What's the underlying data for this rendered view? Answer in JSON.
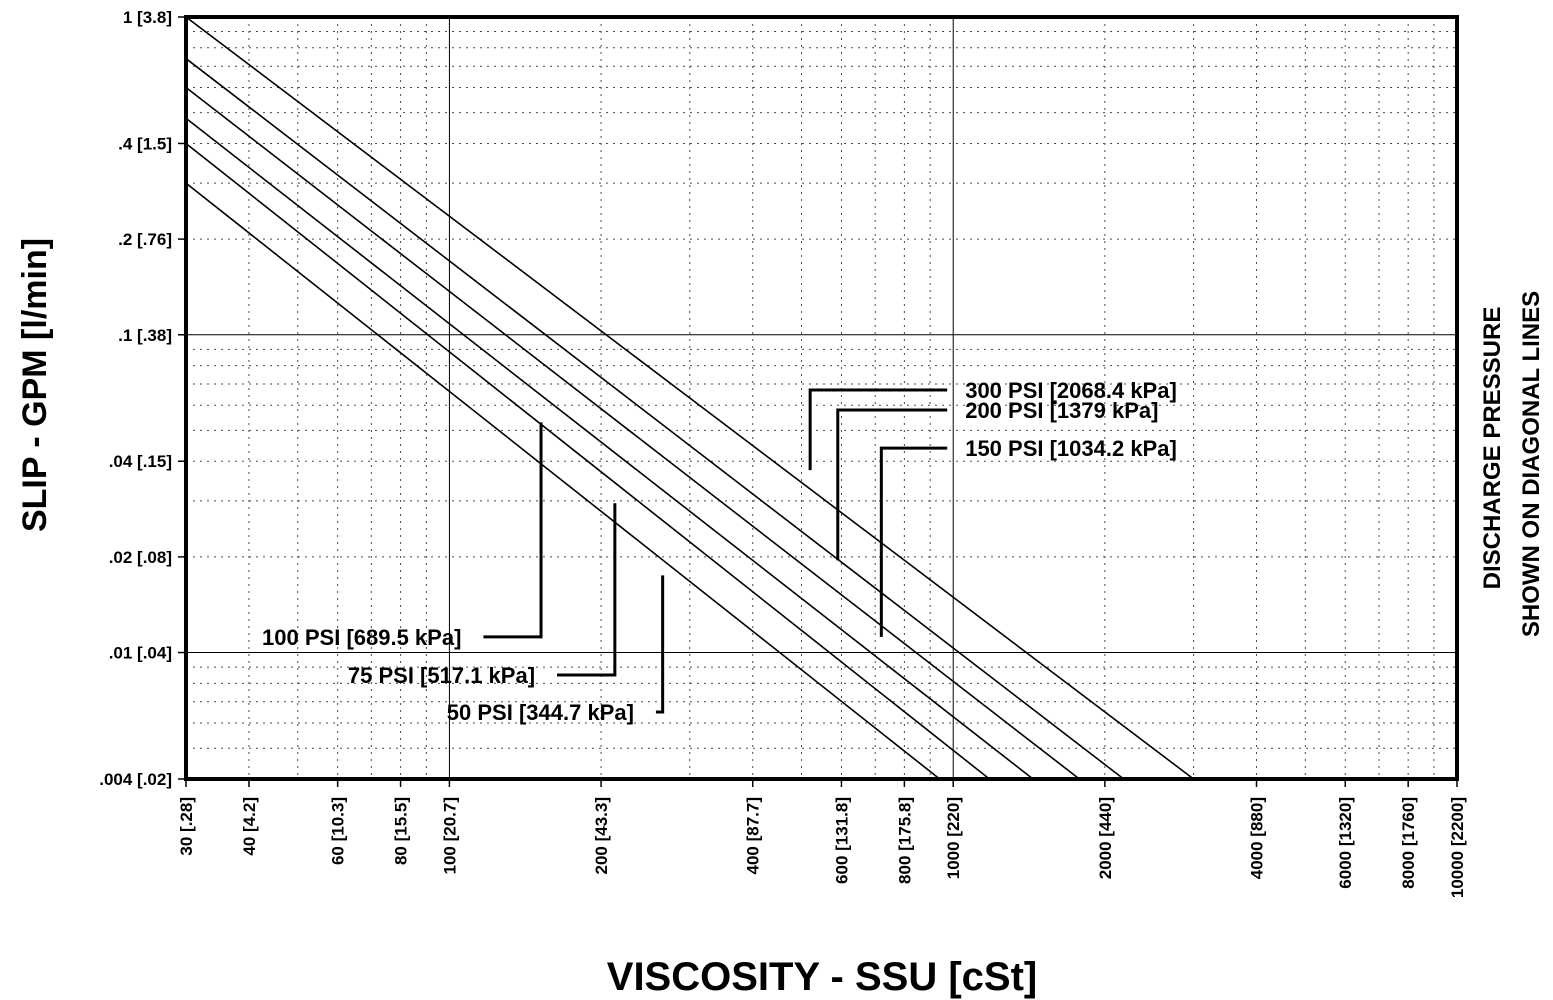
{
  "chart_data": {
    "type": "line",
    "title": "",
    "xlabel": "VISCOSITY - SSU [cSt]",
    "ylabel": "SLIP - GPM [l/min]",
    "y2label": [
      "DISCHARGE PRESSURE",
      "SHOWN ON DIAGONAL LINES"
    ],
    "x_scale": "log",
    "y_scale": "log",
    "xlim": [
      30,
      10000
    ],
    "ylim": [
      0.004,
      1
    ],
    "grid": true,
    "x_ticks": [
      {
        "value": 30,
        "label": "30 [.28]"
      },
      {
        "value": 40,
        "label": "40 [4.2]"
      },
      {
        "value": 60,
        "label": "60 [10.3]"
      },
      {
        "value": 80,
        "label": "80 [15.5]"
      },
      {
        "value": 100,
        "label": "100 [20.7]"
      },
      {
        "value": 200,
        "label": "200 [43.3]"
      },
      {
        "value": 400,
        "label": "400 [87.7]"
      },
      {
        "value": 600,
        "label": "600 [131.8]"
      },
      {
        "value": 800,
        "label": "800 [175.8]"
      },
      {
        "value": 1000,
        "label": "1000 [220]"
      },
      {
        "value": 2000,
        "label": "2000 [440]"
      },
      {
        "value": 4000,
        "label": "4000 [880]"
      },
      {
        "value": 6000,
        "label": "6000 [1320]"
      },
      {
        "value": 8000,
        "label": "8000 [1760]"
      },
      {
        "value": 10000,
        "label": "10000 [2200]"
      }
    ],
    "y_ticks": [
      {
        "value": 1,
        "label": "1 [3.8]"
      },
      {
        "value": 0.4,
        "label": ".4 [1.5]"
      },
      {
        "value": 0.2,
        "label": ".2 [.76]"
      },
      {
        "value": 0.1,
        "label": ".1 [.38]"
      },
      {
        "value": 0.04,
        "label": ".04 [.15]"
      },
      {
        "value": 0.02,
        "label": ".02 [.08]"
      },
      {
        "value": 0.01,
        "label": ".01 [.04]"
      },
      {
        "value": 0.004,
        "label": ".004 [.02]"
      }
    ],
    "series": [
      {
        "name": "300 PSI [2068.4 kPa]",
        "x": [
          30,
          3000
        ],
        "y": [
          1.0,
          0.004
        ]
      },
      {
        "name": "200 PSI [1379 kPa]",
        "x": [
          30,
          2180
        ],
        "y": [
          0.74,
          0.004
        ]
      },
      {
        "name": "150 PSI [1034.2 kPa]",
        "x": [
          30,
          1780
        ],
        "y": [
          0.6,
          0.004
        ]
      },
      {
        "name": "100 PSI [689.5 kPa]",
        "x": [
          30,
          1440
        ],
        "y": [
          0.48,
          0.004
        ]
      },
      {
        "name": "75 PSI [517.1 kPa]",
        "x": [
          30,
          1180
        ],
        "y": [
          0.4,
          0.004
        ]
      },
      {
        "name": "50 PSI [344.7 kPa]",
        "x": [
          30,
          940
        ],
        "y": [
          0.3,
          0.004
        ]
      }
    ],
    "annotations": [
      {
        "text": "300 PSI [2068.4 kPa]",
        "side": "right",
        "anchor": {
          "x": 520,
          "y": 0.0375
        },
        "elbow": {
          "x": 520,
          "y": 0.067
        },
        "label_pos": {
          "x": 1000,
          "y": 0.067
        }
      },
      {
        "text": "200 PSI [1379 kPa]",
        "side": "right",
        "anchor": {
          "x": 590,
          "y": 0.0195
        },
        "elbow": {
          "x": 590,
          "y": 0.058
        },
        "label_pos": {
          "x": 1000,
          "y": 0.058
        }
      },
      {
        "text": "150 PSI [1034.2 kPa]",
        "side": "right",
        "anchor": {
          "x": 720,
          "y": 0.0112
        },
        "elbow": {
          "x": 720,
          "y": 0.044
        },
        "label_pos": {
          "x": 1000,
          "y": 0.044
        }
      },
      {
        "text": "100 PSI [689.5 kPa]",
        "side": "left",
        "anchor": {
          "x": 152,
          "y": 0.053
        },
        "elbow": {
          "x": 152,
          "y": 0.0112
        },
        "label_pos": {
          "x": 100,
          "y": 0.0112
        }
      },
      {
        "text": "75 PSI [517.1 kPa]",
        "side": "left",
        "anchor": {
          "x": 213,
          "y": 0.0295
        },
        "elbow": {
          "x": 213,
          "y": 0.0085
        },
        "label_pos": {
          "x": 140,
          "y": 0.0085
        }
      },
      {
        "text": "50 PSI [344.7 kPa]",
        "side": "left",
        "anchor": {
          "x": 265,
          "y": 0.0175
        },
        "elbow": {
          "x": 265,
          "y": 0.0065
        },
        "label_pos": {
          "x": 220,
          "y": 0.0065
        }
      }
    ]
  }
}
